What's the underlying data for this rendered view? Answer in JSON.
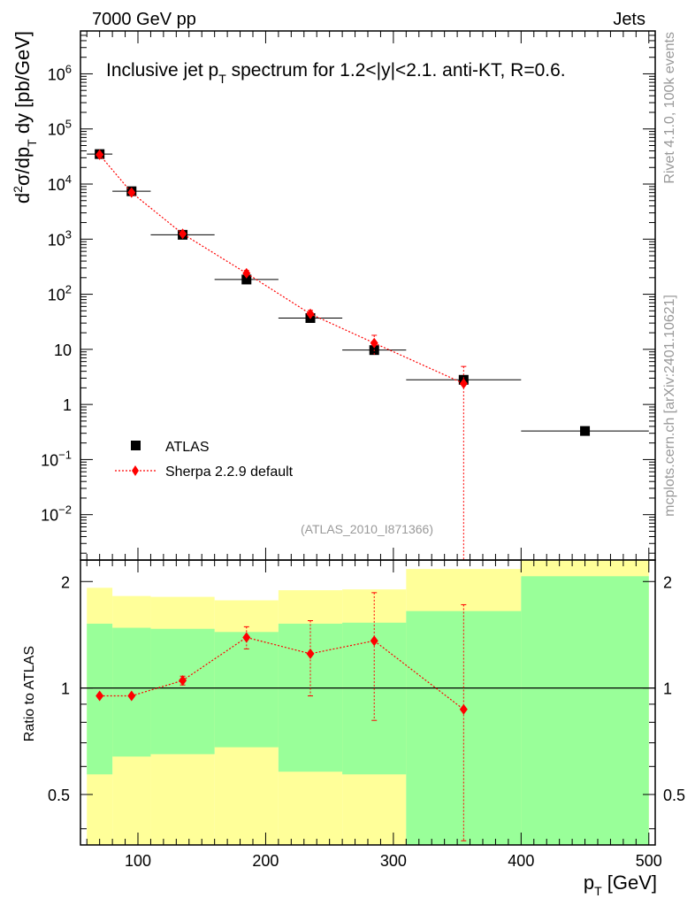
{
  "header": {
    "left": "7000 GeV pp",
    "right": "Jets"
  },
  "side_text": {
    "rivet": "Rivet 4.1.0,  100k events",
    "mcplots": "mcplots.cern.ch [arXiv:2401.10621]"
  },
  "colors": {
    "data": "#000000",
    "mc": "#ff0000",
    "band_inner": "#99ff99",
    "band_outer": "#ffff99"
  },
  "chart_data": [
    {
      "type": "scatter",
      "title": "Inclusive jet p_T spectrum for 1.2<|y|<2.1.  anti-KT, R=0.6.",
      "ylabel": "d²σ/dp_T dy [pb/GeV]",
      "xlabel": "",
      "xlim": [
        55,
        505
      ],
      "ylim": [
        0.0015,
        6000000
      ],
      "yscale": "log",
      "ytick_labels": [
        "10^-2",
        "10^-1",
        "1",
        "10",
        "10^2",
        "10^3",
        "10^4",
        "10^5",
        "10^6"
      ],
      "ytick_values": [
        0.01,
        0.1,
        1,
        10,
        100,
        1000,
        10000,
        100000,
        1000000
      ],
      "watermark": "(ATLAS_2010_I871366)",
      "legend": [
        {
          "label": "ATLAS",
          "style": "black-square"
        },
        {
          "label": "Sherpa 2.2.9 default",
          "style": "red-diamond-dotted-line"
        }
      ],
      "legend_position": "lower-left",
      "series": [
        {
          "name": "ATLAS",
          "x": [
            70,
            95,
            135,
            185,
            235,
            285,
            355,
            450
          ],
          "x_err": [
            10,
            15,
            25,
            25,
            25,
            25,
            45,
            50
          ],
          "y": [
            35000,
            7400,
            1200,
            185,
            37,
            9.7,
            2.8,
            0.33
          ]
        },
        {
          "name": "Sherpa 2.2.9 default",
          "x": [
            70,
            95,
            135,
            185,
            235,
            285,
            355
          ],
          "y": [
            34000,
            7000,
            1250,
            240,
            44,
            13,
            2.4
          ],
          "y_err_up": [
            2000,
            400,
            80,
            30,
            7,
            5,
            2.5
          ],
          "y_err_down": [
            2000,
            400,
            80,
            30,
            7,
            5,
            2.4
          ]
        }
      ]
    },
    {
      "type": "line",
      "ylabel": "Ratio to ATLAS",
      "xlabel": "p_T [GeV]",
      "xlim": [
        55,
        505
      ],
      "ylim": [
        0.36,
        2.3
      ],
      "yscale": "log",
      "xtick_labels": [
        "100",
        "200",
        "300",
        "400",
        "500"
      ],
      "xtick_values": [
        100,
        200,
        300,
        400,
        500
      ],
      "ytick_labels": [
        "0.5",
        "1",
        "2"
      ],
      "ytick_values": [
        0.5,
        1,
        2
      ],
      "reference_line": 1,
      "bands": [
        {
          "x_low": 60,
          "x_high": 80,
          "inner_low": 0.57,
          "inner_high": 1.52,
          "outer_low": 0.36,
          "outer_high": 1.92
        },
        {
          "x_low": 80,
          "x_high": 110,
          "inner_low": 0.64,
          "inner_high": 1.48,
          "outer_low": 0.36,
          "outer_high": 1.82
        },
        {
          "x_low": 110,
          "x_high": 160,
          "inner_low": 0.65,
          "inner_high": 1.47,
          "outer_low": 0.36,
          "outer_high": 1.81
        },
        {
          "x_low": 160,
          "x_high": 210,
          "inner_low": 0.68,
          "inner_high": 1.44,
          "outer_low": 0.36,
          "outer_high": 1.77
        },
        {
          "x_low": 210,
          "x_high": 260,
          "inner_low": 0.58,
          "inner_high": 1.52,
          "outer_low": 0.36,
          "outer_high": 1.89
        },
        {
          "x_low": 260,
          "x_high": 310,
          "inner_low": 0.57,
          "inner_high": 1.53,
          "outer_low": 0.36,
          "outer_high": 1.9
        },
        {
          "x_low": 310,
          "x_high": 400,
          "inner_low": 0.36,
          "inner_high": 1.65,
          "outer_low": 0.36,
          "outer_high": 2.17
        },
        {
          "x_low": 400,
          "x_high": 500,
          "inner_low": 0.36,
          "inner_high": 2.07,
          "outer_low": 0.36,
          "outer_high": 2.3
        }
      ],
      "series": [
        {
          "name": "Sherpa 2.2.9 default",
          "x": [
            70,
            95,
            135,
            185,
            235,
            285,
            355
          ],
          "y": [
            0.95,
            0.95,
            1.05,
            1.39,
            1.25,
            1.36,
            0.87
          ],
          "y_err_up": [
            0,
            0,
            0.03,
            0.1,
            0.3,
            0.5,
            0.85
          ],
          "y_err_down": [
            0,
            0,
            0.03,
            0.1,
            0.3,
            0.55,
            0.5
          ]
        }
      ]
    }
  ]
}
